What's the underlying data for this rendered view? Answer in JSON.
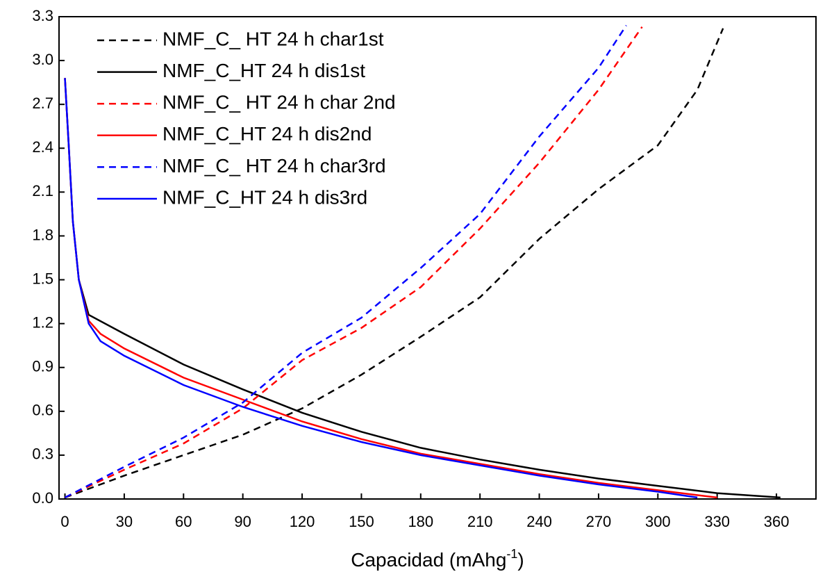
{
  "chart_data": {
    "type": "line",
    "x_label": "Capacidad (mAhg",
    "x_label_sup": "-1",
    "x_label_end": ")",
    "xlim": [
      -3,
      380
    ],
    "ylim": [
      0,
      3.3
    ],
    "xticks": [
      0,
      30,
      60,
      90,
      120,
      150,
      180,
      210,
      240,
      270,
      300,
      330,
      360
    ],
    "yticks": [
      {
        "value": 0,
        "label": "0.0"
      },
      0.3,
      0.6,
      0.9,
      1.2,
      1.5,
      1.8,
      2.1,
      2.4,
      2.7,
      {
        "value": 3,
        "label": "3.0"
      },
      3.3
    ],
    "legend": "upper-left",
    "series": [
      {
        "name": "NMF_C_ HT 24 h char1st",
        "color": "#000000",
        "dashed": true,
        "x": [
          0,
          30,
          60,
          90,
          120,
          150,
          180,
          210,
          240,
          270,
          300,
          320,
          333
        ],
        "values": [
          0.01,
          0.16,
          0.3,
          0.44,
          0.62,
          0.85,
          1.11,
          1.38,
          1.78,
          2.12,
          2.42,
          2.8,
          3.22
        ]
      },
      {
        "name": "NMF_C_HT 24 h dis1st",
        "color": "#000000",
        "dashed": false,
        "x": [
          0,
          2,
          4,
          7,
          12,
          30,
          60,
          90,
          120,
          150,
          180,
          210,
          240,
          270,
          300,
          330,
          362
        ],
        "values": [
          2.88,
          2.4,
          1.9,
          1.5,
          1.26,
          1.13,
          0.92,
          0.75,
          0.59,
          0.46,
          0.35,
          0.27,
          0.2,
          0.14,
          0.09,
          0.04,
          0.01
        ]
      },
      {
        "name": "NMF_C_ HT 24 h char 2nd",
        "color": "#ff0000",
        "dashed": true,
        "x": [
          0,
          30,
          60,
          90,
          120,
          150,
          180,
          210,
          240,
          270,
          292
        ],
        "values": [
          0.01,
          0.2,
          0.38,
          0.62,
          0.95,
          1.17,
          1.45,
          1.85,
          2.3,
          2.8,
          3.23
        ]
      },
      {
        "name": "NMF_C_HT 24 h dis2nd",
        "color": "#ff0000",
        "dashed": false,
        "x": [
          0,
          2,
          4,
          7,
          12,
          18,
          30,
          60,
          90,
          120,
          150,
          180,
          210,
          240,
          270,
          300,
          330
        ],
        "values": [
          2.88,
          2.4,
          1.9,
          1.5,
          1.22,
          1.13,
          1.03,
          0.83,
          0.68,
          0.53,
          0.41,
          0.31,
          0.24,
          0.17,
          0.11,
          0.06,
          0.01
        ]
      },
      {
        "name": "NMF_C_ HT 24 h char3rd",
        "color": "#0000ff",
        "dashed": true,
        "x": [
          0,
          30,
          60,
          90,
          120,
          150,
          180,
          210,
          240,
          270,
          284
        ],
        "values": [
          0.01,
          0.22,
          0.42,
          0.66,
          1.0,
          1.24,
          1.58,
          1.95,
          2.48,
          2.95,
          3.24
        ]
      },
      {
        "name": "NMF_C_HT 24 h dis3rd",
        "color": "#0000ff",
        "dashed": false,
        "x": [
          0,
          2,
          4,
          7,
          12,
          18,
          30,
          60,
          90,
          120,
          150,
          180,
          210,
          240,
          270,
          300,
          320
        ],
        "values": [
          2.88,
          2.4,
          1.9,
          1.5,
          1.2,
          1.08,
          0.98,
          0.78,
          0.63,
          0.5,
          0.39,
          0.3,
          0.23,
          0.16,
          0.1,
          0.05,
          0.01
        ]
      }
    ]
  }
}
